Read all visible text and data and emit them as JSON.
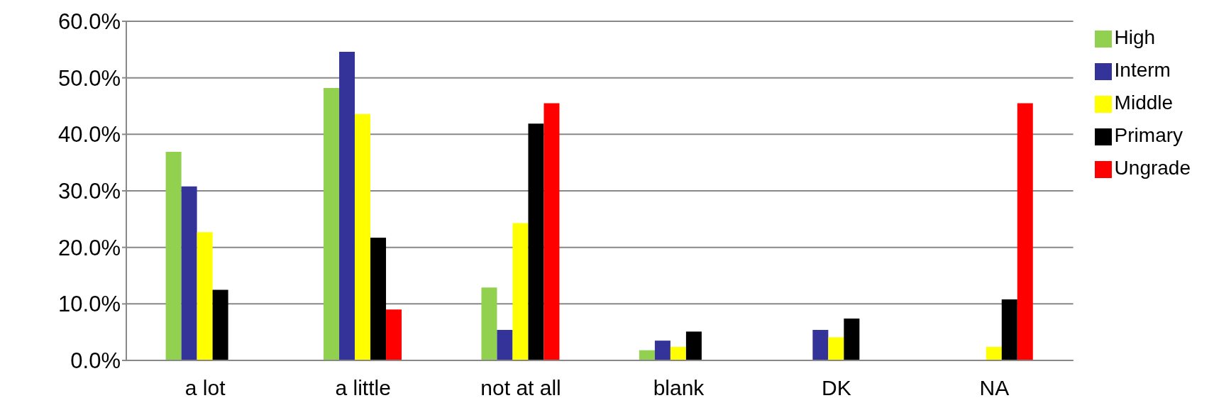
{
  "chart_data": {
    "type": "bar",
    "categories": [
      "a lot",
      "a little",
      "not at all",
      "blank",
      "DK",
      "NA"
    ],
    "series": [
      {
        "name": "High",
        "color": "#92d050",
        "values": [
          36.9,
          48.2,
          12.9,
          1.8,
          0,
          0
        ]
      },
      {
        "name": "Interm",
        "color": "#333399",
        "values": [
          30.8,
          54.6,
          5.4,
          3.5,
          5.4,
          0
        ]
      },
      {
        "name": "Middle",
        "color": "#ffff00",
        "values": [
          22.7,
          43.6,
          24.3,
          2.4,
          4.1,
          2.4
        ]
      },
      {
        "name": "Primary",
        "color": "#000000",
        "values": [
          12.5,
          21.7,
          41.9,
          5.1,
          7.4,
          10.8
        ]
      },
      {
        "name": "Ungrade",
        "color": "#ff0000",
        "values": [
          0,
          9.0,
          45.5,
          0,
          0,
          45.5
        ]
      }
    ],
    "ylim": [
      0,
      60
    ],
    "yticks": [
      {
        "value": 0,
        "label": "0.0%"
      },
      {
        "value": 10,
        "label": "10.0%"
      },
      {
        "value": 20,
        "label": "20.0%"
      },
      {
        "value": 30,
        "label": "30.0%"
      },
      {
        "value": 40,
        "label": "40.0%"
      },
      {
        "value": 50,
        "label": "50.0%"
      },
      {
        "value": 60,
        "label": "60.0%"
      }
    ],
    "grid": "y",
    "legend": "right"
  }
}
